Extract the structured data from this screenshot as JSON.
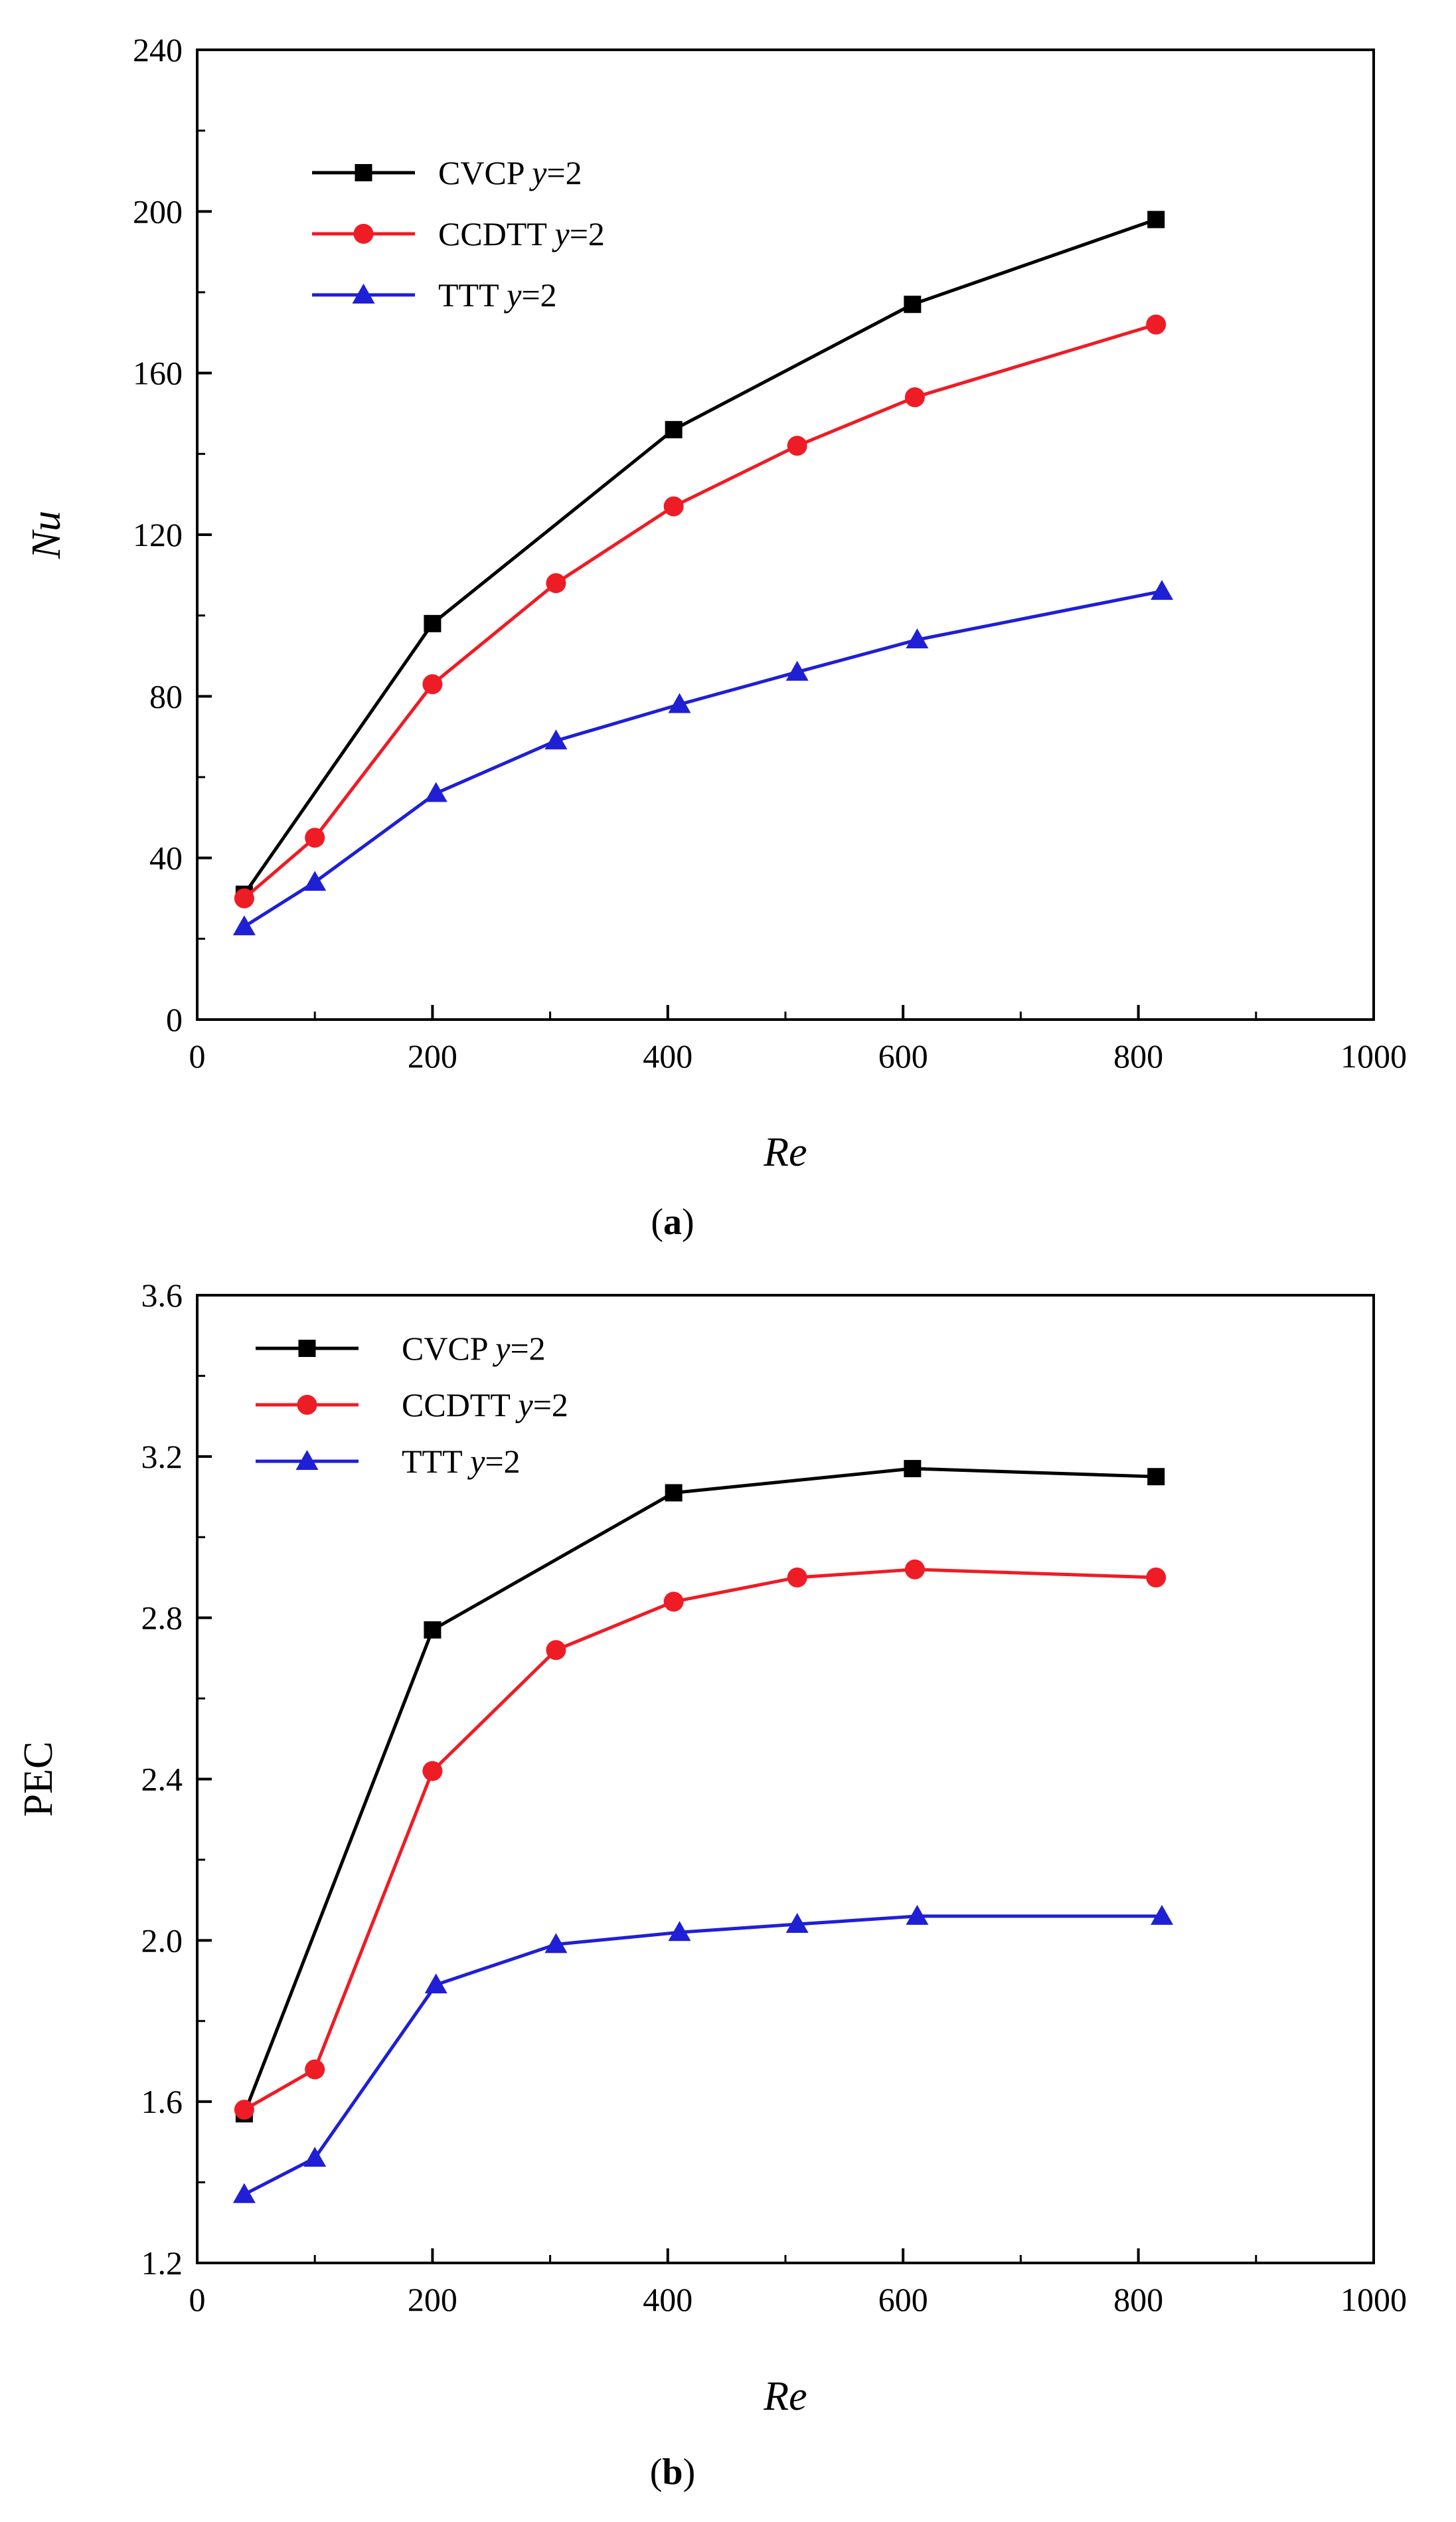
{
  "colors": {
    "CVCP": "#000000",
    "CCDTT": "#ee1c25",
    "TTT": "#1f1fd6"
  },
  "chart_data": [
    {
      "type": "line",
      "caption": {
        "open": "(",
        "letter": "a",
        "close": ")"
      },
      "xlabel": "Re",
      "ylabel": "Nu",
      "xlim": [
        0,
        1000
      ],
      "ylim": [
        0,
        240
      ],
      "xticks": [
        "0",
        "200",
        "400",
        "600",
        "800",
        "1000"
      ],
      "yticks": [
        "0",
        "40",
        "80",
        "120",
        "160",
        "200",
        "240"
      ],
      "legend_position": "top-left",
      "series": [
        {
          "key": "CVCP",
          "name": "CVCP",
          "param": "y",
          "eq": "=2",
          "marker": "square",
          "x": [
            40,
            200,
            405,
            608,
            815
          ],
          "y": [
            31,
            98,
            146,
            177,
            198
          ]
        },
        {
          "key": "CCDTT",
          "name": "CCDTT",
          "param": "y",
          "eq": "=2",
          "marker": "circle",
          "x": [
            40,
            100,
            200,
            305,
            405,
            510,
            610,
            815
          ],
          "y": [
            30,
            45,
            83,
            108,
            127,
            142,
            154,
            172
          ]
        },
        {
          "key": "TTT",
          "name": "TTT",
          "param": "y",
          "eq": "=2",
          "marker": "triangle",
          "x": [
            40,
            100,
            203,
            305,
            410,
            510,
            612,
            820
          ],
          "y": [
            23,
            34,
            56,
            69,
            78,
            86,
            94,
            106
          ]
        }
      ]
    },
    {
      "type": "line",
      "caption": {
        "open": "(",
        "letter": "b",
        "close": ")"
      },
      "xlabel": "Re",
      "ylabel": "PEC",
      "xlim": [
        0,
        1000
      ],
      "ylim": [
        1.2,
        3.6
      ],
      "xticks": [
        "0",
        "200",
        "400",
        "600",
        "800",
        "1000"
      ],
      "yticks": [
        "1.2",
        "1.6",
        "2.0",
        "2.4",
        "2.8",
        "3.2",
        "3.6"
      ],
      "legend_position": "top-left",
      "series": [
        {
          "key": "CVCP",
          "name": "CVCP",
          "param": "y",
          "eq": "=2",
          "marker": "square",
          "x": [
            40,
            200,
            405,
            608,
            815
          ],
          "y": [
            1.57,
            2.77,
            3.11,
            3.17,
            3.15
          ]
        },
        {
          "key": "CCDTT",
          "name": "CCDTT",
          "param": "y",
          "eq": "=2",
          "marker": "circle",
          "x": [
            40,
            100,
            200,
            305,
            405,
            510,
            610,
            815
          ],
          "y": [
            1.58,
            1.68,
            2.42,
            2.72,
            2.84,
            2.9,
            2.92,
            2.9
          ]
        },
        {
          "key": "TTT",
          "name": "TTT",
          "param": "y",
          "eq": "=2",
          "marker": "triangle",
          "x": [
            40,
            100,
            203,
            305,
            410,
            510,
            612,
            820
          ],
          "y": [
            1.37,
            1.46,
            1.89,
            1.99,
            2.02,
            2.04,
            2.06,
            2.06
          ]
        }
      ]
    }
  ]
}
